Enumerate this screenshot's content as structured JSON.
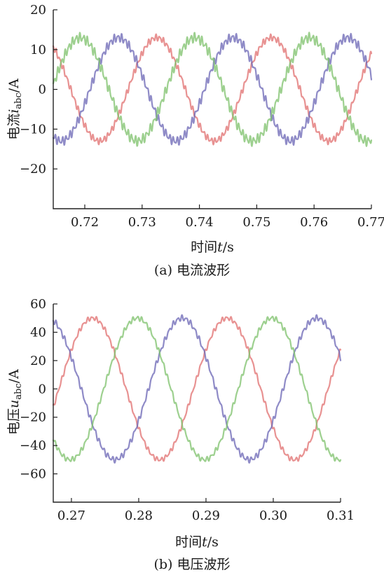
{
  "chart_data": [
    {
      "type": "line",
      "caption": "(a) 电流波形",
      "xlabel": "时间t/s",
      "ylabel": "电流i_abc/A",
      "ylabel_parts": {
        "prefix": "电流",
        "var": "i",
        "sub": "abc",
        "unit": "/A"
      },
      "xlabel_parts": {
        "prefix": "时间",
        "var": "t",
        "unit": "/s"
      },
      "xlim": [
        0.7145,
        0.77
      ],
      "ylim": [
        -30,
        20
      ],
      "xticks": [
        0.72,
        0.73,
        0.74,
        0.75,
        0.76,
        0.77
      ],
      "xtick_labels": [
        "0.72",
        "0.73",
        "0.74",
        "0.75",
        "0.76",
        "0.77"
      ],
      "yticks": [
        20,
        10,
        0,
        -10,
        -20
      ],
      "ytick_labels": [
        "20",
        "10",
        "0",
        "−10",
        "−20"
      ],
      "grid": false,
      "series": [
        {
          "color": "#e06e6e",
          "amplitude": 13,
          "frequency_hz": 50,
          "phase_deg_at_start": 125,
          "ripple": 0.6
        },
        {
          "color": "#6a64b4",
          "amplitude": 13,
          "frequency_hz": 50,
          "phase_deg_at_start": 245,
          "ripple": 0.8
        },
        {
          "color": "#7cc06a",
          "amplitude": 13,
          "frequency_hz": 50,
          "phase_deg_at_start": 5,
          "ripple": 0.9
        }
      ]
    },
    {
      "type": "line",
      "caption": "(b) 电压波形",
      "xlabel": "时间t/s",
      "ylabel": "电压u_abc/A",
      "ylabel_parts": {
        "prefix": "电压",
        "var": "u",
        "sub": "abc",
        "unit": "/A"
      },
      "xlabel_parts": {
        "prefix": "时间",
        "var": "t",
        "unit": "/s"
      },
      "xlim": [
        0.2673,
        0.31
      ],
      "ylim": [
        -80,
        60
      ],
      "xticks": [
        0.27,
        0.28,
        0.29,
        0.3,
        0.31
      ],
      "xtick_labels": [
        "0.27",
        "0.28",
        "0.29",
        "0.30",
        "0.31"
      ],
      "yticks": [
        60,
        40,
        20,
        0,
        -20,
        -40,
        -60
      ],
      "ytick_labels": [
        "60",
        "40",
        "20",
        "0",
        "−20",
        "−40",
        "−60"
      ],
      "grid": false,
      "series": [
        {
          "color": "#e06e6e",
          "amplitude": 50,
          "frequency_hz": 50,
          "phase_deg_at_start": 345,
          "ripple": 1.2
        },
        {
          "color": "#6a64b4",
          "amplitude": 50,
          "frequency_hz": 50,
          "phase_deg_at_start": 105,
          "ripple": 1.5
        },
        {
          "color": "#7cc06a",
          "amplitude": 50,
          "frequency_hz": 50,
          "phase_deg_at_start": 225,
          "ripple": 1.3
        }
      ]
    }
  ]
}
